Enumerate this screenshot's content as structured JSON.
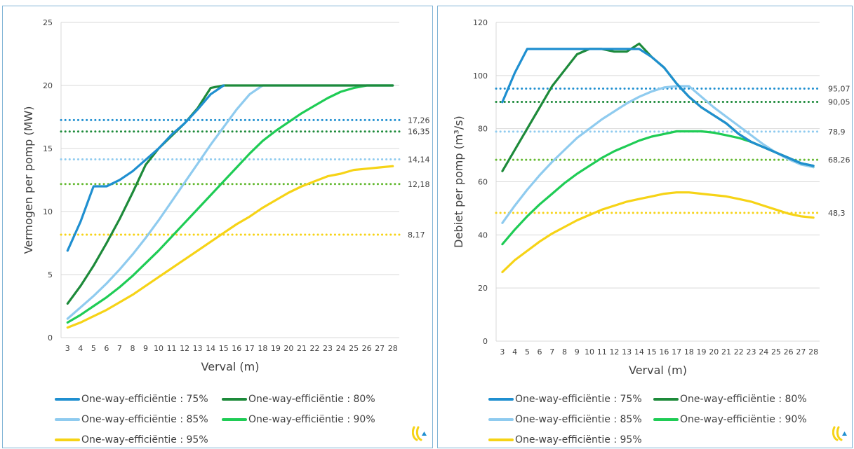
{
  "chart_data": [
    {
      "type": "line",
      "title": "",
      "xlabel": "Verval (m)",
      "ylabel": "Vermogen per pomp (MW)",
      "x": [
        3,
        4,
        5,
        6,
        7,
        8,
        9,
        10,
        11,
        12,
        13,
        14,
        15,
        16,
        17,
        18,
        19,
        20,
        21,
        22,
        23,
        24,
        25,
        26,
        27,
        28
      ],
      "ylim": [
        0,
        25
      ],
      "yticks": [
        0,
        5,
        10,
        15,
        20,
        25
      ],
      "grid": "horizontal",
      "legend_position": "bottom",
      "series": [
        {
          "name": "One-way-efficiëntie : 75%",
          "color": "#1f8fd0",
          "values": [
            6.9,
            9.2,
            12.0,
            12.0,
            12.5,
            13.2,
            14.1,
            15.0,
            16.1,
            17.0,
            18.1,
            19.3,
            20.0,
            null,
            null,
            null,
            null,
            null,
            null,
            null,
            null,
            null,
            null,
            null,
            null,
            null
          ]
        },
        {
          "name": "One-way-efficiëntie : 80%",
          "color": "#1d8a3a",
          "values": [
            2.7,
            4.1,
            5.7,
            7.5,
            9.4,
            11.5,
            13.7,
            15.0,
            16.0,
            17.0,
            18.2,
            19.8,
            20.0,
            20.0,
            20.0,
            20.0,
            20.0,
            20.0,
            20.0,
            20.0,
            20.0,
            20.0,
            20.0,
            20.0,
            20.0,
            20.0
          ]
        },
        {
          "name": "One-way-efficiëntie : 85%",
          "color": "#8fcbef",
          "values": [
            1.5,
            2.4,
            3.3,
            4.3,
            5.4,
            6.6,
            7.9,
            9.3,
            10.8,
            12.3,
            13.8,
            15.3,
            16.7,
            18.1,
            19.3,
            20.0,
            20.0,
            20.0,
            20.0,
            20.0,
            20.0,
            20.0,
            20.0,
            20.0,
            20.0,
            20.0
          ]
        },
        {
          "name": "One-way-efficiëntie : 90%",
          "color": "#1fcc55",
          "values": [
            1.2,
            1.8,
            2.5,
            3.2,
            4.0,
            4.9,
            5.9,
            6.9,
            8.0,
            9.1,
            10.2,
            11.3,
            12.4,
            13.5,
            14.6,
            15.6,
            16.4,
            17.1,
            17.8,
            18.4,
            19.0,
            19.5,
            19.8,
            20.0,
            20.0,
            20.0
          ]
        },
        {
          "name": "One-way-efficiëntie : 95%",
          "color": "#f6d316",
          "values": [
            0.8,
            1.2,
            1.7,
            2.2,
            2.8,
            3.4,
            4.1,
            4.8,
            5.5,
            6.2,
            6.9,
            7.6,
            8.3,
            9.0,
            9.6,
            10.3,
            10.9,
            11.5,
            12.0,
            12.4,
            12.8,
            13.0,
            13.3,
            13.4,
            13.5,
            13.6
          ]
        }
      ],
      "reference_lines": [
        {
          "value": 17.26,
          "label": "17,26",
          "color": "#1f8fd0"
        },
        {
          "value": 16.35,
          "label": "16,35",
          "color": "#1d8a3a"
        },
        {
          "value": 14.14,
          "label": "14,14",
          "color": "#8fcbef"
        },
        {
          "value": 12.18,
          "label": "12,18",
          "color": "#64b931"
        },
        {
          "value": 8.17,
          "label": "8,17",
          "color": "#f6d316"
        }
      ]
    },
    {
      "type": "line",
      "title": "",
      "xlabel": "Verval (m)",
      "ylabel": "Debiet per pomp (m³/s)",
      "x": [
        3,
        4,
        5,
        6,
        7,
        8,
        9,
        10,
        11,
        12,
        13,
        14,
        15,
        16,
        17,
        18,
        19,
        20,
        21,
        22,
        23,
        24,
        25,
        26,
        27,
        28
      ],
      "ylim": [
        0,
        120
      ],
      "yticks": [
        0,
        20,
        40,
        60,
        80,
        100,
        120
      ],
      "grid": "horizontal",
      "legend_position": "bottom",
      "series": [
        {
          "name": "One-way-efficiëntie : 75%",
          "color": "#1f8fd0",
          "values": [
            90,
            101,
            110,
            110,
            110,
            110,
            110,
            110,
            110,
            110,
            110,
            110,
            107,
            103,
            97,
            92,
            88,
            85,
            82,
            78,
            75,
            73,
            71,
            69,
            67,
            66
          ]
        },
        {
          "name": "One-way-efficiëntie : 80%",
          "color": "#1d8a3a",
          "values": [
            64,
            72,
            80,
            88,
            96,
            102,
            108,
            110,
            110,
            109,
            109,
            112,
            107,
            103,
            97,
            92,
            88,
            85,
            82,
            78,
            75,
            73,
            71,
            69,
            67,
            66
          ]
        },
        {
          "name": "One-way-efficiëntie : 85%",
          "color": "#8fcbef",
          "values": [
            44.5,
            51,
            57,
            62.5,
            67.5,
            72,
            76.5,
            80,
            83.5,
            86.5,
            89.5,
            92,
            94,
            95.5,
            96,
            96,
            92,
            88,
            84.5,
            81,
            77.5,
            74,
            71,
            68.5,
            66.5,
            65.5
          ]
        },
        {
          "name": "One-way-efficiëntie : 90%",
          "color": "#1fcc55",
          "values": [
            36.5,
            42,
            47,
            51.5,
            55.5,
            59.5,
            63,
            66,
            69,
            71.5,
            73.5,
            75.5,
            77,
            78,
            79,
            79,
            79,
            78.5,
            77.5,
            76.5,
            75,
            73,
            71,
            69,
            67,
            65.5
          ]
        },
        {
          "name": "One-way-efficiëntie : 95%",
          "color": "#f6d316",
          "values": [
            26,
            30.5,
            34,
            37.5,
            40.5,
            43,
            45.5,
            47.5,
            49.5,
            51,
            52.5,
            53.5,
            54.5,
            55.5,
            56,
            56,
            55.5,
            55,
            54.5,
            53.5,
            52.5,
            51,
            49.5,
            48,
            47,
            46.5
          ]
        }
      ],
      "reference_lines": [
        {
          "value": 95.07,
          "label": "95,07",
          "color": "#1f8fd0"
        },
        {
          "value": 90.05,
          "label": "90,05",
          "color": "#1d8a3a"
        },
        {
          "value": 78.9,
          "label": "78,9",
          "color": "#8fcbef"
        },
        {
          "value": 68.26,
          "label": "68,26",
          "color": "#64b931"
        },
        {
          "value": 48.3,
          "label": "48,3",
          "color": "#f6d316"
        }
      ]
    }
  ]
}
